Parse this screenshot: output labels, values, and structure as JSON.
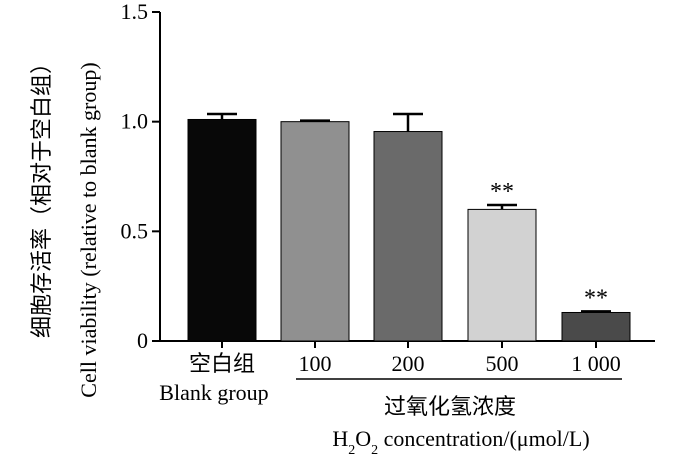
{
  "chart_data": {
    "type": "bar",
    "ylabel_cn": "细胞存活率（相对于空白组）",
    "ylabel_en": "Cell viability (relative to blank group)",
    "ylim": [
      0,
      1.5
    ],
    "yticks": [
      {
        "value": 0,
        "label": "0"
      },
      {
        "value": 0.5,
        "label": "0.5"
      },
      {
        "value": 1.0,
        "label": "1.0"
      },
      {
        "value": 1.5,
        "label": "1.5"
      }
    ],
    "categories": [
      {
        "label": "空白组",
        "sublabel": "Blank group"
      },
      {
        "label": "100"
      },
      {
        "label": "200"
      },
      {
        "label": "500"
      },
      {
        "label": "1 000"
      }
    ],
    "values": [
      1.01,
      1.0,
      0.955,
      0.6,
      0.13
    ],
    "errors": [
      0.025,
      0.005,
      0.08,
      0.02,
      0.005
    ],
    "bar_colors": [
      "#080808",
      "#909090",
      "#6a6a6a",
      "#d2d2d2",
      "#4a4a4a"
    ],
    "significance": [
      "",
      "",
      "",
      "**",
      "**"
    ],
    "group_label_cn": "过氧化氢浓度",
    "group_label_en_h": "H",
    "group_label_en_sub1": "2",
    "group_label_en_o": "O",
    "group_label_en_sub2": "2",
    "group_label_en_rest": "  concentration/(μmol/L)"
  }
}
